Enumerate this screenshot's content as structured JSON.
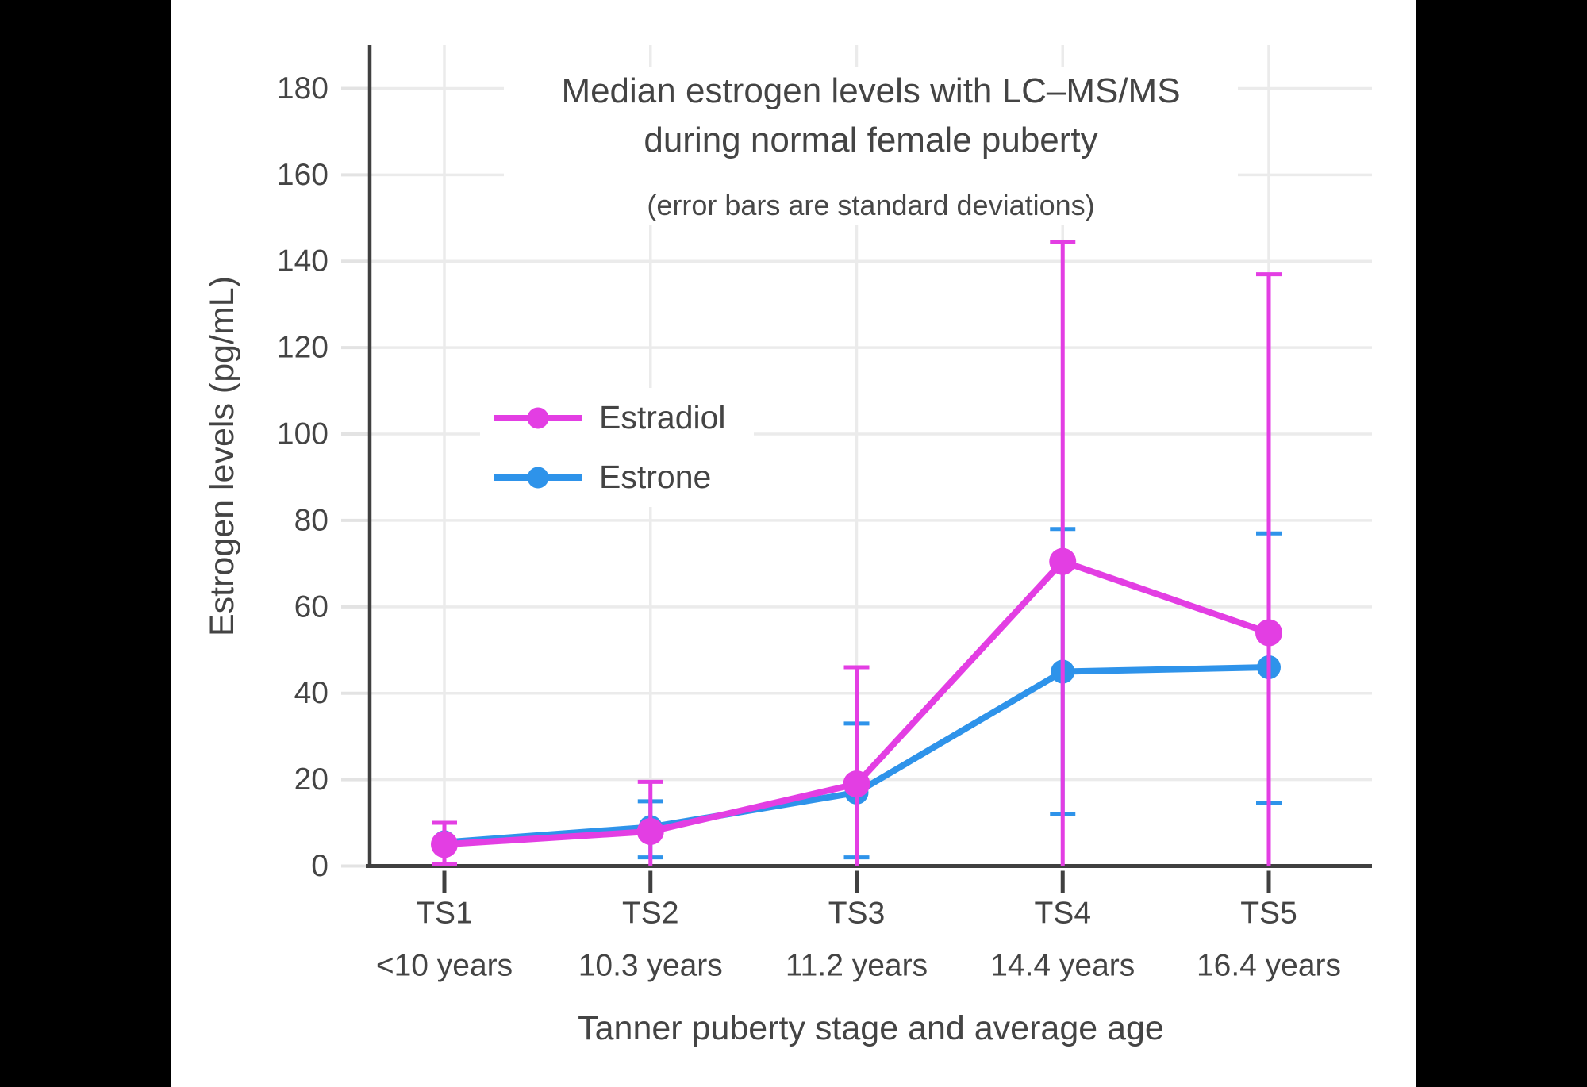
{
  "chart_data": {
    "type": "line",
    "title": "Median estrogen levels with LC–MS/MS during normal female puberty",
    "title_lines": [
      "Median estrogen levels with LC–MS/MS",
      "during normal female puberty"
    ],
    "subtitle": "(error bars are standard deviations)",
    "xlabel": "Tanner puberty stage and average age",
    "ylabel": "Estrogen levels (pg/mL)",
    "categories": [
      "TS1",
      "TS2",
      "TS3",
      "TS4",
      "TS5"
    ],
    "category_ages": [
      "<10 years",
      "10.3 years",
      "11.2 years",
      "14.4 years",
      "16.4 years"
    ],
    "ylim": [
      0,
      190
    ],
    "yticks": [
      0,
      20,
      40,
      60,
      80,
      100,
      120,
      140,
      160,
      180
    ],
    "grid": true,
    "legend_position": "inside-upper-left",
    "error_bar_meaning": "standard deviations",
    "series": [
      {
        "name": "Estradiol",
        "color": "#E33EE3",
        "values": [
          5,
          8,
          19,
          70.5,
          54
        ],
        "error_low": [
          0.5,
          0,
          0,
          0,
          0
        ],
        "error_high": [
          10,
          19.5,
          46,
          144.5,
          137
        ]
      },
      {
        "name": "Estrone",
        "color": "#2E93EA",
        "values": [
          5.5,
          9,
          17,
          45,
          46
        ],
        "error_low": [
          null,
          2,
          2,
          12,
          14.5
        ],
        "error_high": [
          null,
          15,
          33,
          78,
          77
        ]
      }
    ],
    "colors": {
      "text": "#444444",
      "grid": "#EBEBEB",
      "axis": "#404040",
      "y_tick": "#E3E3E3",
      "background": "#FFFFFF",
      "letterbox": "#000000"
    }
  }
}
